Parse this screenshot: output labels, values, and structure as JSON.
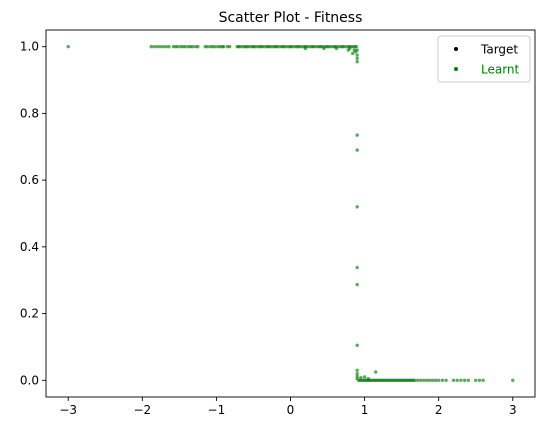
{
  "chart_data": {
    "type": "scatter",
    "title": "Scatter Plot - Fitness",
    "xlabel": "",
    "ylabel": "",
    "xlim": [
      -3.3,
      3.3
    ],
    "ylim": [
      -0.05,
      1.05
    ],
    "x_ticks": [
      -3,
      -2,
      -1,
      0,
      1,
      2,
      3
    ],
    "x_tick_labels": [
      "−3",
      "−2",
      "−1",
      "0",
      "1",
      "2",
      "3"
    ],
    "y_ticks": [
      0.0,
      0.2,
      0.4,
      0.6,
      0.8,
      1.0
    ],
    "y_tick_labels": [
      "0.0",
      "0.2",
      "0.4",
      "0.6",
      "0.8",
      "1.0"
    ],
    "grid": false,
    "legend_position": "top-right",
    "legend": [
      {
        "label": "Target",
        "color": "#000000"
      },
      {
        "label": "Learnt",
        "color": "#008000"
      }
    ],
    "series": [
      {
        "name": "Learnt",
        "color": "#008000",
        "points": [
          [
            -3.0,
            1.0
          ],
          [
            -1.88,
            1.0
          ],
          [
            -1.84,
            1.0
          ],
          [
            -1.8,
            1.0
          ],
          [
            -1.76,
            1.0
          ],
          [
            -1.72,
            1.0
          ],
          [
            -1.68,
            1.0
          ],
          [
            -1.64,
            1.0
          ],
          [
            -1.58,
            1.0
          ],
          [
            -1.55,
            1.0
          ],
          [
            -1.52,
            1.0
          ],
          [
            -1.48,
            1.0
          ],
          [
            -1.45,
            1.0
          ],
          [
            -1.42,
            1.0
          ],
          [
            -1.38,
            1.0
          ],
          [
            -1.35,
            1.0
          ],
          [
            -1.32,
            1.0
          ],
          [
            -1.28,
            1.0
          ],
          [
            -1.25,
            1.0
          ],
          [
            -1.15,
            1.0
          ],
          [
            -1.12,
            1.0
          ],
          [
            -1.08,
            1.0
          ],
          [
            -1.05,
            1.0
          ],
          [
            -1.02,
            1.0
          ],
          [
            -0.98,
            1.0
          ],
          [
            -0.95,
            1.0
          ],
          [
            -0.92,
            1.0
          ],
          [
            -0.9,
            1.0
          ],
          [
            -0.85,
            1.0
          ],
          [
            -0.82,
            1.0
          ],
          [
            -0.72,
            1.0
          ],
          [
            -0.7,
            1.0
          ],
          [
            -0.68,
            1.0
          ],
          [
            -0.65,
            1.0
          ],
          [
            -0.62,
            1.0
          ],
          [
            -0.6,
            1.0
          ],
          [
            -0.58,
            1.0
          ],
          [
            -0.55,
            1.0
          ],
          [
            -0.52,
            1.0
          ],
          [
            -0.5,
            1.0
          ],
          [
            -0.48,
            1.0
          ],
          [
            -0.45,
            1.0
          ],
          [
            -0.42,
            1.0
          ],
          [
            -0.4,
            1.0
          ],
          [
            -0.38,
            1.0
          ],
          [
            -0.35,
            1.0
          ],
          [
            -0.32,
            1.0
          ],
          [
            -0.3,
            1.0
          ],
          [
            -0.28,
            1.0
          ],
          [
            -0.25,
            1.0
          ],
          [
            -0.22,
            1.0
          ],
          [
            -0.2,
            1.0
          ],
          [
            -0.18,
            1.0
          ],
          [
            -0.15,
            1.0
          ],
          [
            -0.12,
            1.0
          ],
          [
            -0.1,
            1.0
          ],
          [
            -0.08,
            1.0
          ],
          [
            -0.05,
            1.0
          ],
          [
            -0.02,
            1.0
          ],
          [
            0.0,
            1.0
          ],
          [
            0.02,
            1.0
          ],
          [
            0.05,
            1.0
          ],
          [
            0.08,
            1.0
          ],
          [
            0.1,
            1.0
          ],
          [
            0.12,
            1.0
          ],
          [
            0.15,
            1.0
          ],
          [
            0.18,
            1.0
          ],
          [
            0.2,
            1.0
          ],
          [
            0.22,
            1.0
          ],
          [
            0.25,
            1.0
          ],
          [
            0.28,
            1.0
          ],
          [
            0.3,
            1.0
          ],
          [
            0.32,
            1.0
          ],
          [
            0.35,
            1.0
          ],
          [
            0.38,
            1.0
          ],
          [
            0.4,
            1.0
          ],
          [
            0.42,
            1.0
          ],
          [
            0.45,
            1.0
          ],
          [
            0.48,
            1.0
          ],
          [
            0.5,
            1.0
          ],
          [
            0.52,
            1.0
          ],
          [
            0.55,
            1.0
          ],
          [
            0.58,
            1.0
          ],
          [
            0.6,
            1.0
          ],
          [
            0.62,
            1.0
          ],
          [
            0.65,
            1.0
          ],
          [
            0.68,
            1.0
          ],
          [
            0.7,
            1.0
          ],
          [
            0.72,
            1.0
          ],
          [
            0.75,
            1.0
          ],
          [
            0.78,
            1.0
          ],
          [
            0.8,
            1.0
          ],
          [
            0.82,
            1.0
          ],
          [
            0.85,
            1.0
          ],
          [
            0.87,
            1.0
          ],
          [
            0.89,
            1.0
          ],
          [
            0.2,
            0.995
          ],
          [
            0.45,
            0.995
          ],
          [
            0.62,
            0.995
          ],
          [
            0.8,
            0.995
          ],
          [
            0.86,
            0.99
          ],
          [
            0.88,
            0.985
          ],
          [
            0.9,
            0.99
          ],
          [
            0.84,
            0.98
          ],
          [
            0.78,
            0.99
          ],
          [
            0.9,
            0.975
          ],
          [
            0.9,
            0.965
          ],
          [
            0.9,
            0.955
          ],
          [
            0.9,
            0.735
          ],
          [
            0.9,
            0.69
          ],
          [
            0.9,
            0.52
          ],
          [
            0.9,
            0.338
          ],
          [
            0.9,
            0.287
          ],
          [
            0.9,
            0.105
          ],
          [
            0.9,
            0.03
          ],
          [
            0.9,
            0.02
          ],
          [
            0.9,
            0.012
          ],
          [
            0.9,
            0.005
          ],
          [
            1.15,
            0.025
          ],
          [
            0.95,
            0.008
          ],
          [
            1.0,
            0.01
          ],
          [
            1.05,
            0.005
          ],
          [
            0.92,
            0.0
          ],
          [
            0.94,
            0.0
          ],
          [
            0.96,
            0.0
          ],
          [
            0.98,
            0.0
          ],
          [
            1.0,
            0.0
          ],
          [
            1.02,
            0.0
          ],
          [
            1.04,
            0.0
          ],
          [
            1.06,
            0.0
          ],
          [
            1.08,
            0.0
          ],
          [
            1.1,
            0.0
          ],
          [
            1.12,
            0.0
          ],
          [
            1.14,
            0.0
          ],
          [
            1.16,
            0.0
          ],
          [
            1.18,
            0.0
          ],
          [
            1.2,
            0.0
          ],
          [
            1.22,
            0.0
          ],
          [
            1.24,
            0.0
          ],
          [
            1.26,
            0.0
          ],
          [
            1.28,
            0.0
          ],
          [
            1.3,
            0.0
          ],
          [
            1.32,
            0.0
          ],
          [
            1.34,
            0.0
          ],
          [
            1.36,
            0.0
          ],
          [
            1.38,
            0.0
          ],
          [
            1.4,
            0.0
          ],
          [
            1.42,
            0.0
          ],
          [
            1.44,
            0.0
          ],
          [
            1.46,
            0.0
          ],
          [
            1.48,
            0.0
          ],
          [
            1.5,
            0.0
          ],
          [
            1.52,
            0.0
          ],
          [
            1.54,
            0.0
          ],
          [
            1.56,
            0.0
          ],
          [
            1.58,
            0.0
          ],
          [
            1.6,
            0.0
          ],
          [
            1.62,
            0.0
          ],
          [
            1.64,
            0.0
          ],
          [
            1.66,
            0.0
          ],
          [
            1.68,
            0.0
          ],
          [
            1.72,
            0.0
          ],
          [
            1.76,
            0.0
          ],
          [
            1.8,
            0.0
          ],
          [
            1.84,
            0.0
          ],
          [
            1.88,
            0.0
          ],
          [
            1.92,
            0.0
          ],
          [
            1.96,
            0.0
          ],
          [
            2.0,
            0.0
          ],
          [
            2.05,
            0.0
          ],
          [
            2.1,
            0.0
          ],
          [
            2.2,
            0.0
          ],
          [
            2.25,
            0.0
          ],
          [
            2.3,
            0.0
          ],
          [
            2.35,
            0.0
          ],
          [
            2.4,
            0.0
          ],
          [
            2.5,
            0.0
          ],
          [
            2.55,
            0.0
          ],
          [
            2.6,
            0.0
          ],
          [
            3.0,
            0.0
          ]
        ]
      }
    ]
  }
}
